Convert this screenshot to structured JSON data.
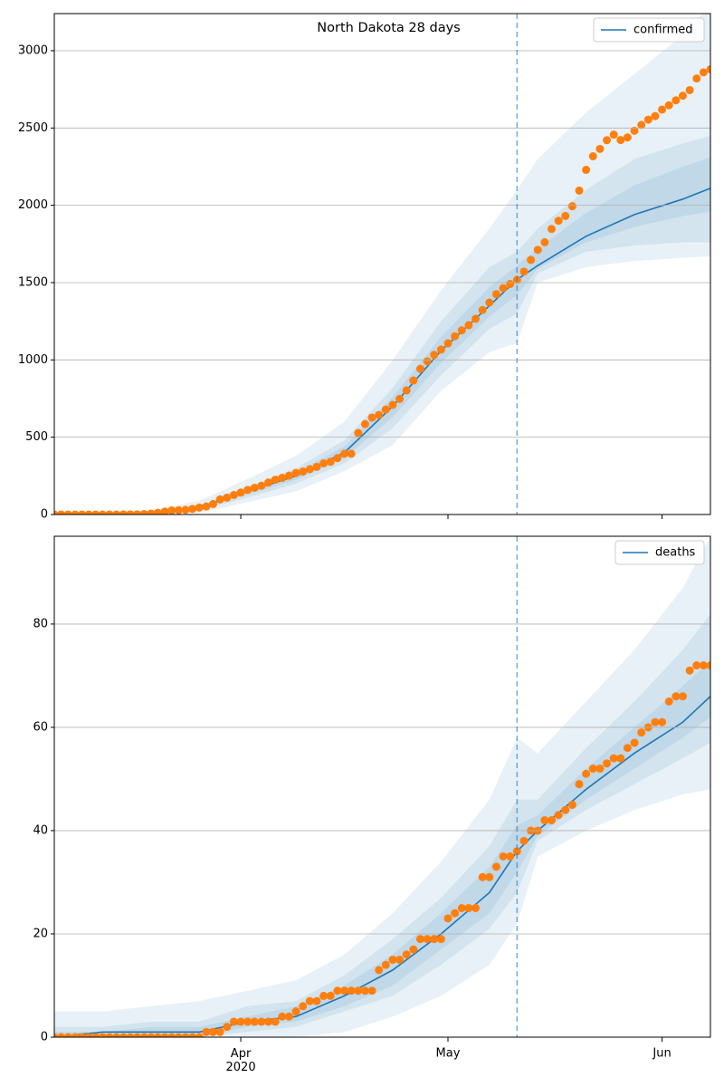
{
  "chart_data": [
    {
      "type": "line",
      "title": "North Dakota 28 days",
      "xlim": [
        "2020-03-05",
        "2020-06-08"
      ],
      "xticks": [
        "2020-04-01",
        "2020-05-01",
        "2020-06-01"
      ],
      "xtick_labels": false,
      "ylim": [
        0,
        3240
      ],
      "yticks": [
        0,
        500,
        1000,
        1500,
        2000,
        2500,
        3000
      ],
      "grid": "y",
      "legend": "upper right",
      "vline": {
        "x": "2020-05-11",
        "color": "#1f77b4",
        "style": "dashed"
      },
      "fit": {
        "name": "confirmed",
        "color": "#1f77b4",
        "x": [
          "2020-03-05",
          "2020-03-12",
          "2020-03-19",
          "2020-03-26",
          "2020-04-02",
          "2020-04-09",
          "2020-04-16",
          "2020-04-23",
          "2020-04-30",
          "2020-05-07",
          "2020-05-11",
          "2020-05-14",
          "2020-05-21",
          "2020-05-28",
          "2020-06-04",
          "2020-06-08"
        ],
        "values": [
          0,
          0,
          5,
          45,
          150,
          250,
          400,
          700,
          1060,
          1350,
          1520,
          1610,
          1800,
          1940,
          2040,
          2110
        ],
        "band_opacity": 0.1,
        "bands": [
          {
            "lower": [
              0,
              0,
              0,
              10,
              80,
              150,
              280,
              450,
              800,
              1050,
              1110,
              1500,
              1600,
              1640,
              1660,
              1670
            ],
            "upper": [
              5,
              8,
              25,
              90,
              230,
              380,
              600,
              1000,
              1450,
              1850,
              2100,
              2300,
              2600,
              2850,
              3100,
              3300
            ]
          },
          {
            "lower": [
              0,
              0,
              2,
              25,
              110,
              200,
              330,
              560,
              900,
              1200,
              1300,
              1560,
              1700,
              1740,
              1760,
              1760
            ],
            "upper": [
              0,
              3,
              12,
              60,
              180,
              300,
              480,
              820,
              1250,
              1600,
              1700,
              1850,
              2100,
              2300,
              2400,
              2450
            ]
          },
          {
            "lower": [
              0,
              0,
              3,
              35,
              130,
              225,
              365,
              630,
              980,
              1280,
              1420,
              1590,
              1760,
              1860,
              1930,
              1960
            ],
            "upper": [
              0,
              1,
              8,
              52,
              165,
              275,
              440,
              760,
              1150,
              1470,
              1610,
              1720,
              1950,
              2130,
              2250,
              2310
            ]
          }
        ]
      },
      "observed": {
        "color": "#ff7f0e",
        "values": [
          0,
          0,
          0,
          0,
          0,
          0,
          0,
          0,
          0,
          0,
          1,
          1,
          1,
          3,
          6,
          11,
          19,
          26,
          28,
          30,
          36,
          45,
          52,
          68,
          98,
          109,
          126,
          142,
          159,
          173,
          186,
          207,
          225,
          237,
          251,
          269,
          278,
          293,
          308,
          331,
          341,
          365,
          393,
          393,
          528,
          585,
          627,
          644,
          679,
          709,
          748,
          803,
          867,
          942,
          991,
          1033,
          1067,
          1107,
          1153,
          1191,
          1225,
          1266,
          1323,
          1371,
          1425,
          1464,
          1491,
          1518,
          1571,
          1647,
          1712,
          1761,
          1847,
          1900,
          1931,
          1994,
          2095,
          2229,
          2317,
          2365,
          2421,
          2457,
          2422,
          2439,
          2482,
          2520,
          2554,
          2577,
          2619,
          2647,
          2679,
          2709,
          2745,
          2820,
          2860,
          2880
        ]
      },
      "x": [
        "2020-03-05",
        "2020-03-06",
        "2020-03-07",
        "2020-03-08",
        "2020-03-09",
        "2020-03-10",
        "2020-03-11",
        "2020-03-12",
        "2020-03-13",
        "2020-03-14",
        "2020-03-15",
        "2020-03-16",
        "2020-03-17",
        "2020-03-18",
        "2020-03-19",
        "2020-03-20",
        "2020-03-21",
        "2020-03-22",
        "2020-03-23",
        "2020-03-24",
        "2020-03-25",
        "2020-03-26",
        "2020-03-27",
        "2020-03-28",
        "2020-03-29",
        "2020-03-30",
        "2020-03-31",
        "2020-04-01",
        "2020-04-02",
        "2020-04-03",
        "2020-04-04",
        "2020-04-05",
        "2020-04-06",
        "2020-04-07",
        "2020-04-08",
        "2020-04-09",
        "2020-04-10",
        "2020-04-11",
        "2020-04-12",
        "2020-04-13",
        "2020-04-14",
        "2020-04-15",
        "2020-04-16",
        "2020-04-17",
        "2020-04-18",
        "2020-04-19",
        "2020-04-20",
        "2020-04-21",
        "2020-04-22",
        "2020-04-23",
        "2020-04-24",
        "2020-04-25",
        "2020-04-26",
        "2020-04-27",
        "2020-04-28",
        "2020-04-29",
        "2020-04-30",
        "2020-05-01",
        "2020-05-02",
        "2020-05-03",
        "2020-05-04",
        "2020-05-05",
        "2020-05-06",
        "2020-05-07",
        "2020-05-08",
        "2020-05-09",
        "2020-05-10",
        "2020-05-11",
        "2020-05-12",
        "2020-05-13",
        "2020-05-14",
        "2020-05-15",
        "2020-05-16",
        "2020-05-17",
        "2020-05-18",
        "2020-05-19",
        "2020-05-20",
        "2020-05-21",
        "2020-05-22",
        "2020-05-23",
        "2020-05-24",
        "2020-05-25",
        "2020-05-26",
        "2020-05-27",
        "2020-05-28",
        "2020-05-29",
        "2020-05-30",
        "2020-05-31",
        "2020-06-01",
        "2020-06-02",
        "2020-06-03",
        "2020-06-04",
        "2020-06-05",
        "2020-06-06",
        "2020-06-07",
        "2020-06-08"
      ]
    },
    {
      "type": "line",
      "xlim": [
        "2020-03-05",
        "2020-06-08"
      ],
      "xticks": [
        {
          "value": "2020-04-01",
          "label": "Apr\n2020"
        },
        {
          "value": "2020-05-01",
          "label": "May"
        },
        {
          "value": "2020-06-01",
          "label": "Jun"
        }
      ],
      "ylim": [
        0,
        97
      ],
      "yticks": [
        0,
        20,
        40,
        60,
        80
      ],
      "grid": "y",
      "legend": "upper right",
      "vline": {
        "x": "2020-05-11",
        "color": "#1f77b4",
        "style": "dashed"
      },
      "fit": {
        "name": "deaths",
        "color": "#1f77b4",
        "x": [
          "2020-03-05",
          "2020-03-12",
          "2020-03-19",
          "2020-03-26",
          "2020-04-02",
          "2020-04-09",
          "2020-04-16",
          "2020-04-23",
          "2020-04-30",
          "2020-05-07",
          "2020-05-11",
          "2020-05-14",
          "2020-05-21",
          "2020-05-28",
          "2020-06-04",
          "2020-06-08"
        ],
        "values": [
          0,
          1,
          1,
          1,
          3,
          4,
          8,
          13,
          20,
          28,
          36,
          40,
          48,
          55,
          61,
          66
        ],
        "band_opacity": 0.1,
        "bands": [
          {
            "lower": [
              0,
              0,
              0,
              0,
              0,
              0,
              1,
              4,
              8,
              14,
              22,
              35,
              40,
              44,
              47,
              48
            ],
            "upper": [
              5,
              5,
              6,
              7,
              9,
              11,
              16,
              24,
              34,
              46,
              58,
              55,
              65,
              75,
              87,
              97
            ]
          },
          {
            "lower": [
              0,
              0,
              0,
              0,
              1,
              2,
              5,
              8,
              14,
              21,
              28,
              38,
              44,
              49,
              54,
              57
            ],
            "upper": [
              2,
              2,
              3,
              3,
              6,
              7,
              12,
              19,
              27,
              37,
              46,
              46,
              56,
              65,
              75,
              82
            ]
          },
          {
            "lower": [
              0,
              0,
              0,
              0,
              2,
              3,
              6,
              10,
              17,
              24,
              32,
              39,
              46,
              52,
              58,
              62
            ],
            "upper": [
              1,
              1,
              2,
              2,
              4,
              6,
              10,
              16,
              24,
              33,
              41,
              43,
              52,
              60,
              68,
              73
            ]
          }
        ]
      },
      "observed": {
        "color": "#ff7f0e",
        "values": [
          0,
          0,
          0,
          0,
          0,
          0,
          0,
          0,
          0,
          0,
          0,
          0,
          0,
          0,
          0,
          0,
          0,
          0,
          0,
          0,
          0,
          0,
          1,
          1,
          1,
          2,
          3,
          3,
          3,
          3,
          3,
          3,
          3,
          4,
          4,
          5,
          6,
          7,
          7,
          8,
          8,
          9,
          9,
          9,
          9,
          9,
          9,
          13,
          14,
          15,
          15,
          16,
          17,
          19,
          19,
          19,
          19,
          23,
          24,
          25,
          25,
          25,
          31,
          31,
          33,
          35,
          35,
          36,
          38,
          40,
          40,
          42,
          42,
          43,
          44,
          45,
          49,
          51,
          52,
          52,
          53,
          54,
          54,
          56,
          57,
          59,
          60,
          61,
          61,
          65,
          66,
          66,
          71,
          72,
          72,
          72
        ]
      },
      "x": [
        "2020-03-05",
        "2020-03-06",
        "2020-03-07",
        "2020-03-08",
        "2020-03-09",
        "2020-03-10",
        "2020-03-11",
        "2020-03-12",
        "2020-03-13",
        "2020-03-14",
        "2020-03-15",
        "2020-03-16",
        "2020-03-17",
        "2020-03-18",
        "2020-03-19",
        "2020-03-20",
        "2020-03-21",
        "2020-03-22",
        "2020-03-23",
        "2020-03-24",
        "2020-03-25",
        "2020-03-26",
        "2020-03-27",
        "2020-03-28",
        "2020-03-29",
        "2020-03-30",
        "2020-03-31",
        "2020-04-01",
        "2020-04-02",
        "2020-04-03",
        "2020-04-04",
        "2020-04-05",
        "2020-04-06",
        "2020-04-07",
        "2020-04-08",
        "2020-04-09",
        "2020-04-10",
        "2020-04-11",
        "2020-04-12",
        "2020-04-13",
        "2020-04-14",
        "2020-04-15",
        "2020-04-16",
        "2020-04-17",
        "2020-04-18",
        "2020-04-19",
        "2020-04-20",
        "2020-04-21",
        "2020-04-22",
        "2020-04-23",
        "2020-04-24",
        "2020-04-25",
        "2020-04-26",
        "2020-04-27",
        "2020-04-28",
        "2020-04-29",
        "2020-04-30",
        "2020-05-01",
        "2020-05-02",
        "2020-05-03",
        "2020-05-04",
        "2020-05-05",
        "2020-05-06",
        "2020-05-07",
        "2020-05-08",
        "2020-05-09",
        "2020-05-10",
        "2020-05-11",
        "2020-05-12",
        "2020-05-13",
        "2020-05-14",
        "2020-05-15",
        "2020-05-16",
        "2020-05-17",
        "2020-05-18",
        "2020-05-19",
        "2020-05-20",
        "2020-05-21",
        "2020-05-22",
        "2020-05-23",
        "2020-05-24",
        "2020-05-25",
        "2020-05-26",
        "2020-05-27",
        "2020-05-28",
        "2020-05-29",
        "2020-05-30",
        "2020-05-31",
        "2020-06-01",
        "2020-06-02",
        "2020-06-03",
        "2020-06-04",
        "2020-06-05",
        "2020-06-06",
        "2020-06-07",
        "2020-06-08"
      ]
    }
  ]
}
